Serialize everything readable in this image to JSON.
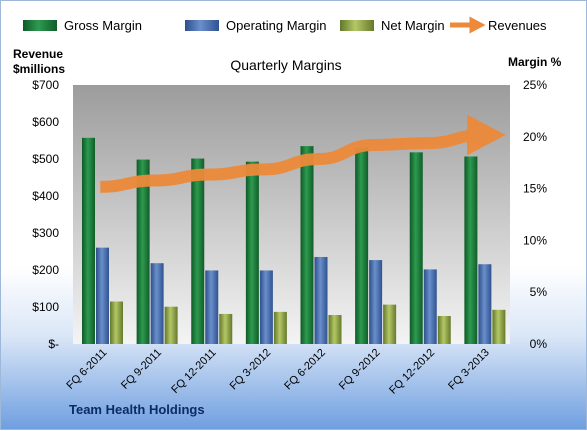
{
  "chart_data": {
    "type": "bar",
    "title": "Quarterly Margins",
    "left_axis_title": [
      "Revenue",
      "$millions"
    ],
    "right_axis_title": "Margin %",
    "categories": [
      "FQ 6-2011",
      "FQ 9-2011",
      "FQ 12-2011",
      "FQ 3-2012",
      "FQ 6-2012",
      "FQ 9-2012",
      "FQ 12-2012",
      "FQ 3-2013"
    ],
    "left_axis": {
      "min": 0,
      "max": 700,
      "step": 100,
      "ticks": [
        "$-",
        "$100",
        "$200",
        "$300",
        "$400",
        "$500",
        "$600",
        "$700"
      ]
    },
    "right_axis": {
      "min": 0,
      "max": 25,
      "step": 5,
      "ticks": [
        "0%",
        "5%",
        "10%",
        "15%",
        "20%",
        "25%"
      ]
    },
    "series": [
      {
        "name": "Gross Margin",
        "axis": "right",
        "color": "#1e7a3c",
        "values": [
          19.9,
          17.8,
          17.9,
          17.6,
          19.1,
          19.0,
          18.5,
          18.1
        ]
      },
      {
        "name": "Operating Margin",
        "axis": "right",
        "color": "#4a6fae",
        "values": [
          9.3,
          7.8,
          7.1,
          7.1,
          8.4,
          8.1,
          7.2,
          7.7
        ]
      },
      {
        "name": "Net Margin",
        "axis": "right",
        "color": "#8fa63e",
        "values": [
          4.1,
          3.6,
          2.9,
          3.1,
          2.8,
          3.8,
          2.7,
          3.3
        ]
      },
      {
        "name": "Revenues",
        "axis": "left",
        "type": "line",
        "color": "#ec8a3a",
        "values": [
          425,
          442,
          458,
          472,
          500,
          538,
          543,
          565
        ]
      }
    ],
    "legend_position": "top",
    "grid": false
  },
  "footer": {
    "company": "Team Health Holdings"
  }
}
